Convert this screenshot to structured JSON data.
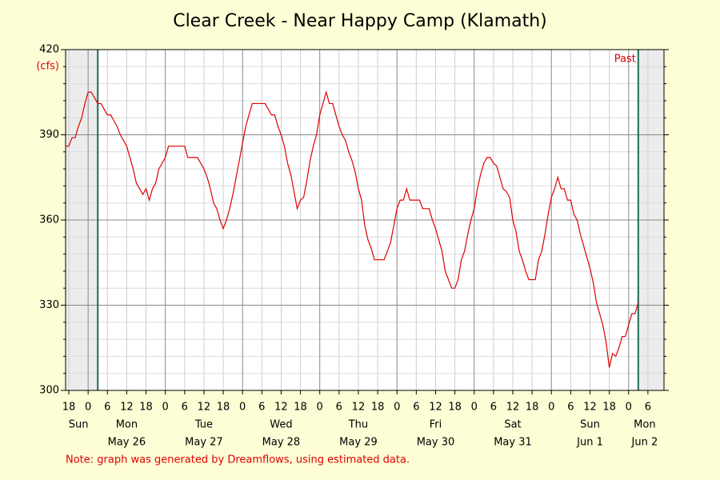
{
  "chart_data": {
    "type": "line",
    "title": "Clear Creek - Near Happy Camp (Klamath)",
    "y_unit": "(cfs)",
    "marker_label": "Past",
    "note": "Note: graph was generated by Dreamflows, using estimated data.",
    "xlim": [
      -7,
      179
    ],
    "ylim": [
      300,
      420
    ],
    "yticks": [
      300,
      330,
      360,
      390,
      420
    ],
    "yminorticks": [
      306,
      312,
      318,
      324,
      336,
      342,
      348,
      354,
      366,
      372,
      378,
      384,
      396,
      402,
      408,
      414
    ],
    "xticks": [
      {
        "value": -6,
        "label": "18"
      },
      0,
      6,
      12,
      18,
      {
        "value": 24,
        "label": "0"
      },
      {
        "value": 30,
        "label": "6"
      },
      {
        "value": 36,
        "label": "12"
      },
      {
        "value": 42,
        "label": "18"
      },
      {
        "value": 48,
        "label": "0"
      },
      {
        "value": 54,
        "label": "6"
      },
      {
        "value": 60,
        "label": "12"
      },
      {
        "value": 66,
        "label": "18"
      },
      {
        "value": 72,
        "label": "0"
      },
      {
        "value": 78,
        "label": "6"
      },
      {
        "value": 84,
        "label": "12"
      },
      {
        "value": 90,
        "label": "18"
      },
      {
        "value": 96,
        "label": "0"
      },
      {
        "value": 102,
        "label": "6"
      },
      {
        "value": 108,
        "label": "12"
      },
      {
        "value": 114,
        "label": "18"
      },
      {
        "value": 120,
        "label": "0"
      },
      {
        "value": 126,
        "label": "6"
      },
      {
        "value": 132,
        "label": "12"
      },
      {
        "value": 138,
        "label": "18"
      },
      {
        "value": 144,
        "label": "0"
      },
      {
        "value": 150,
        "label": "6"
      },
      {
        "value": 156,
        "label": "12"
      },
      {
        "value": 162,
        "label": "18"
      },
      {
        "value": 168,
        "label": "0"
      },
      {
        "value": 174,
        "label": "6"
      }
    ],
    "day_labels": [
      {
        "value": -3,
        "label": "Sun"
      },
      {
        "value": 12,
        "label": "Mon",
        "date": "May 26"
      },
      {
        "value": 36,
        "label": "Tue",
        "date": "May 27"
      },
      {
        "value": 60,
        "label": "Wed",
        "date": "May 28"
      },
      {
        "value": 84,
        "label": "Thu",
        "date": "May 29"
      },
      {
        "value": 108,
        "label": "Fri",
        "date": "May 30"
      },
      {
        "value": 132,
        "label": "Sat",
        "date": "May 31"
      },
      {
        "value": 156,
        "label": "Sun",
        "date": "Jun 1"
      },
      {
        "value": 173,
        "label": "Mon",
        "date": "Jun 2"
      }
    ],
    "markers": [
      3,
      171
    ],
    "marker_color": "#1f6b50",
    "shade_color": "#ececec",
    "grid": true,
    "series": [
      {
        "color": "#e00000",
        "x": [
          -7,
          -6,
          -5,
          -4,
          -3,
          -2,
          -1,
          0,
          1,
          2,
          3,
          4,
          5,
          6,
          7,
          8,
          9,
          10,
          11,
          12,
          13,
          14,
          15,
          16,
          17,
          18,
          19,
          20,
          21,
          22,
          23,
          24,
          25,
          26,
          27,
          28,
          29,
          30,
          31,
          32,
          33,
          34,
          35,
          36,
          37,
          38,
          39,
          40,
          41,
          42,
          43,
          44,
          45,
          46,
          47,
          48,
          49,
          50,
          51,
          52,
          53,
          54,
          55,
          56,
          57,
          58,
          59,
          60,
          61,
          62,
          63,
          64,
          65,
          66,
          67,
          68,
          69,
          70,
          71,
          72,
          73,
          74,
          75,
          76,
          77,
          78,
          79,
          80,
          81,
          82,
          83,
          84,
          85,
          86,
          87,
          88,
          89,
          90,
          91,
          92,
          93,
          94,
          95,
          96,
          97,
          98,
          99,
          100,
          101,
          102,
          103,
          104,
          105,
          106,
          107,
          108,
          109,
          110,
          111,
          112,
          113,
          114,
          115,
          116,
          117,
          118,
          119,
          120,
          121,
          122,
          123,
          124,
          125,
          126,
          127,
          128,
          129,
          130,
          131,
          132,
          133,
          134,
          135,
          136,
          137,
          138,
          139,
          140,
          141,
          142,
          143,
          144,
          145,
          146,
          147,
          148,
          149,
          150,
          151,
          152,
          153,
          154,
          155,
          156,
          157,
          158,
          159,
          160,
          161,
          162,
          163,
          164,
          165,
          166,
          167,
          168,
          169,
          170,
          171
        ],
        "values": [
          386,
          386,
          389,
          389,
          393,
          396,
          401,
          405,
          405,
          403,
          401,
          401,
          399,
          397,
          397,
          395,
          393,
          390,
          388,
          386,
          382,
          378,
          373,
          371,
          369,
          371,
          367,
          371,
          373,
          378,
          380,
          382,
          386,
          386,
          386,
          386,
          386,
          386,
          382,
          382,
          382,
          382,
          380,
          378,
          375,
          371,
          366,
          364,
          360,
          357,
          360,
          364,
          369,
          375,
          381,
          387,
          393,
          397,
          401,
          401,
          401,
          401,
          401,
          399,
          397,
          397,
          393,
          390,
          386,
          380,
          376,
          370,
          364,
          367,
          368,
          374,
          381,
          386,
          390,
          397,
          401,
          405,
          401,
          401,
          397,
          393,
          390,
          388,
          384,
          381,
          377,
          371,
          367,
          358,
          353,
          350,
          346,
          346,
          346,
          346,
          349,
          352,
          358,
          364,
          367,
          367,
          371,
          367,
          367,
          367,
          367,
          364,
          364,
          364,
          360,
          357,
          353,
          349,
          342,
          339,
          336,
          336,
          339,
          346,
          349,
          355,
          360,
          364,
          371,
          376,
          380,
          382,
          382,
          380,
          379,
          375,
          371,
          370,
          368,
          360,
          356,
          349,
          346,
          342,
          339,
          339,
          339,
          346,
          349,
          355,
          362,
          368,
          371,
          375,
          371,
          371,
          367,
          367,
          362,
          360,
          355,
          351,
          347,
          343,
          338,
          331,
          327,
          323,
          317,
          308,
          313,
          312,
          315,
          319,
          319,
          323,
          327,
          327,
          331
        ]
      }
    ]
  }
}
